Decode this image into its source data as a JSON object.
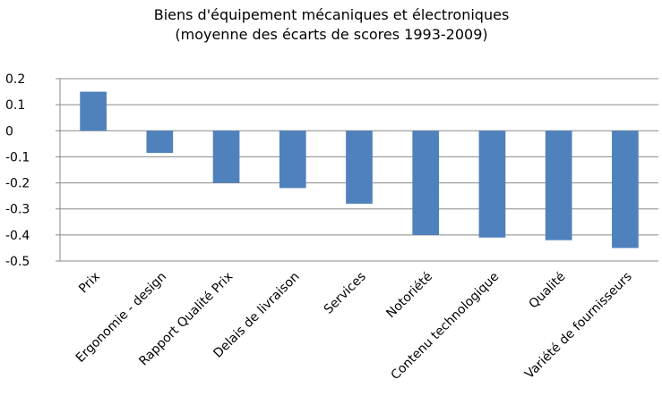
{
  "chart_data": {
    "type": "bar",
    "title": "Biens d'équipement mécaniques et électroniques",
    "subtitle": "(moyenne des écarts de scores 1993-2009)",
    "categories": [
      "Prix",
      "Ergonomie - design",
      "Rapport Qualité Prix",
      "Delais de livraison",
      "Services",
      "Notoriété",
      "Contenu technologique",
      "Qualité",
      "Variété de fournisseurs"
    ],
    "values": [
      0.15,
      -0.085,
      -0.2,
      -0.22,
      -0.28,
      -0.4,
      -0.41,
      -0.42,
      -0.45
    ],
    "color": "#4f81bd",
    "ylim": [
      -0.5,
      0.2
    ],
    "yticks": [
      0.2,
      0.1,
      0,
      -0.1,
      -0.2,
      -0.3,
      -0.4,
      -0.5
    ],
    "grid": true
  }
}
